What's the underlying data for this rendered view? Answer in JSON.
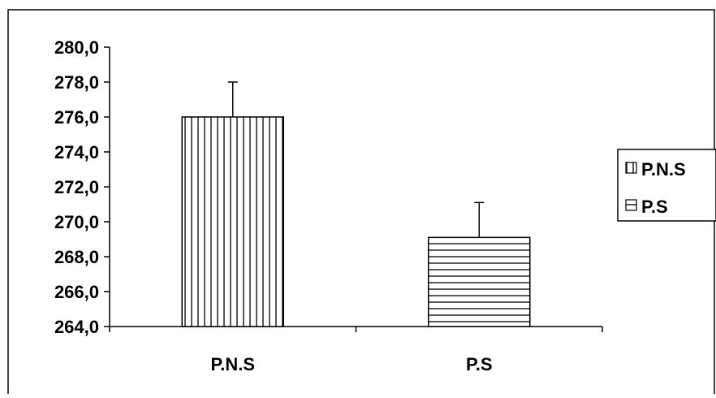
{
  "chart_data": {
    "type": "bar",
    "categories": [
      "P.N.S",
      "P.S"
    ],
    "series": [
      {
        "name": "P.N.S",
        "values": [
          276.0,
          null
        ],
        "error": [
          2.0,
          null
        ],
        "pattern": "vertical-stripes"
      },
      {
        "name": "P.S",
        "values": [
          null,
          269.1
        ],
        "error": [
          null,
          2.0
        ],
        "pattern": "horizontal-stripes"
      }
    ],
    "ylim": [
      264.0,
      280.0
    ],
    "yticks": [
      "264,0",
      "266,0",
      "268,0",
      "270,0",
      "272,0",
      "274,0",
      "276,0",
      "278,0",
      "280,0"
    ],
    "title": "",
    "xlabel": "",
    "ylabel": "",
    "legend": {
      "position": "right",
      "entries": [
        "P.N.S",
        "P.S"
      ]
    },
    "grid": false,
    "colors": {
      "bar_fill": "#ffffff",
      "stroke": "#000000"
    }
  }
}
